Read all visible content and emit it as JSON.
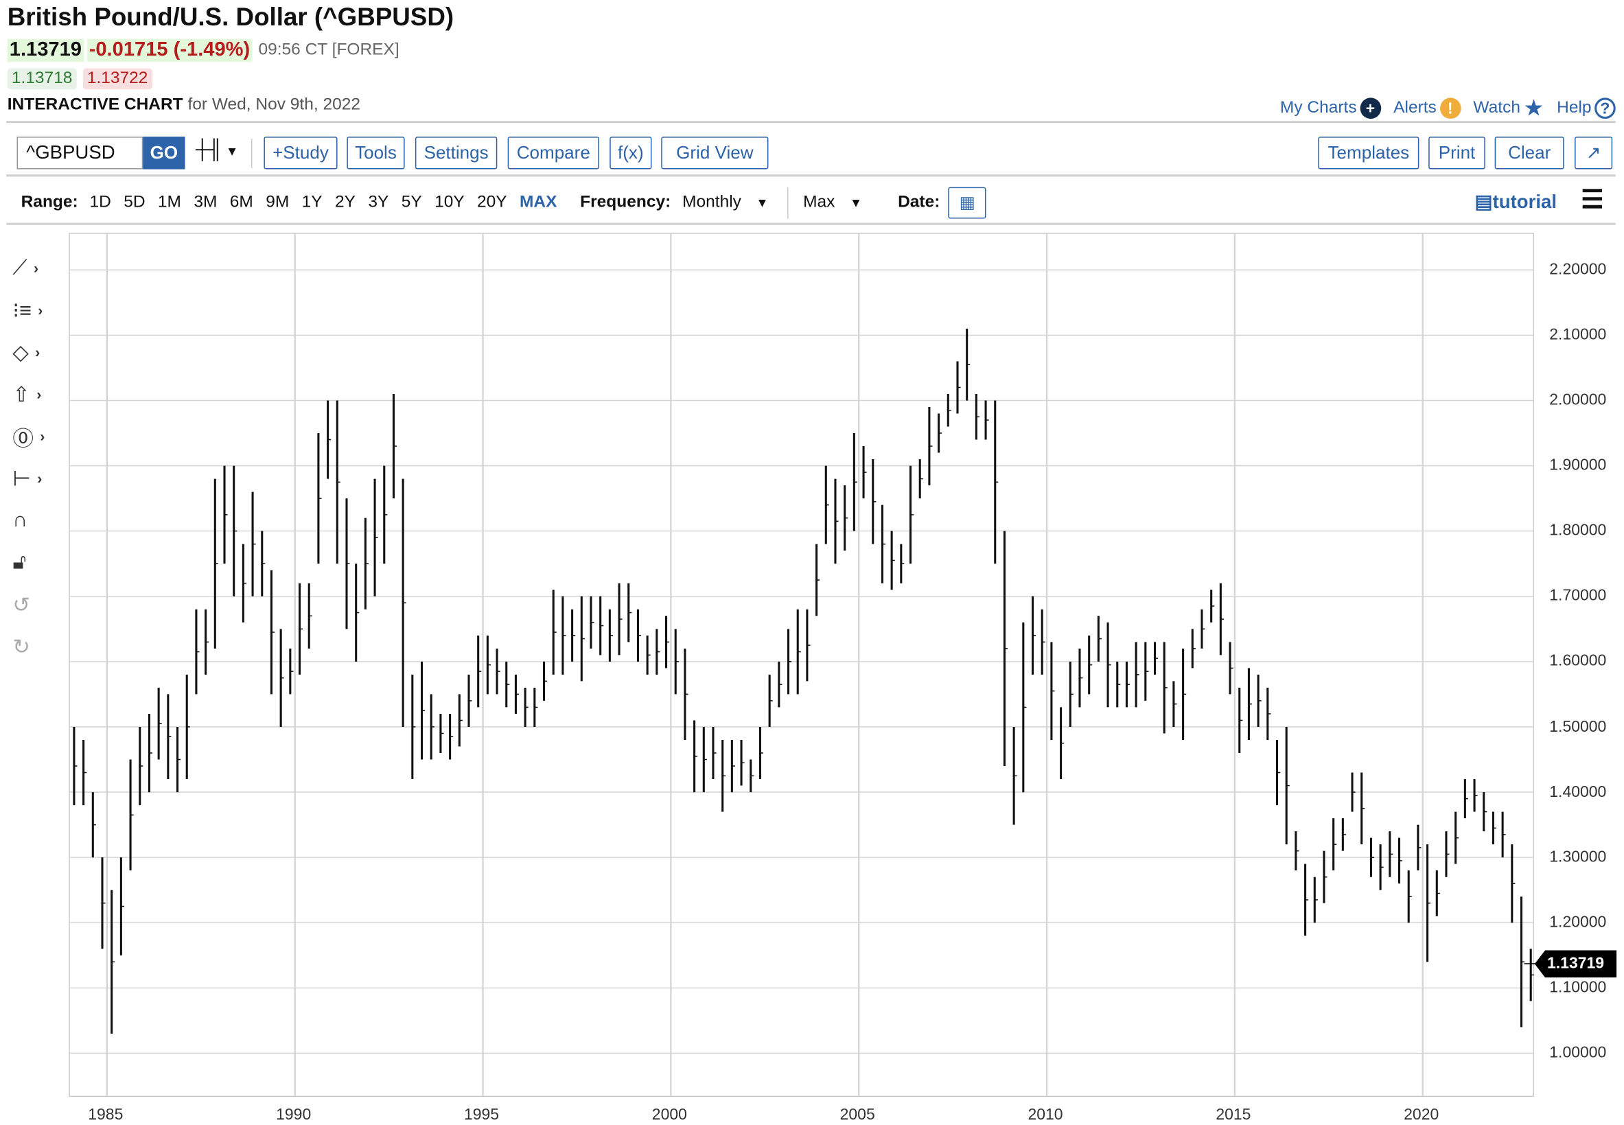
{
  "header": {
    "title": "British Pound/U.S. Dollar (^GBPUSD)",
    "last": "1.13719",
    "change": "-0.01715",
    "change_pct": "(-1.49%)",
    "time": "09:56 CT [FOREX]",
    "bid": "1.13718",
    "ask": "1.13722",
    "chart_label": "INTERACTIVE CHART",
    "chart_date": "for Wed, Nov 9th, 2022"
  },
  "toplinks": {
    "my_charts": "My Charts",
    "alerts": "Alerts",
    "watch": "Watch",
    "help": "Help",
    "alerts_icon": "!",
    "help_icon": "?",
    "my_charts_icon": "+"
  },
  "toolbar": {
    "symbol": "^GBPUSD",
    "go": "GO",
    "study": "+Study",
    "tools": "Tools",
    "settings": "Settings",
    "compare": "Compare",
    "fx": "f(x)",
    "grid_view": "Grid View",
    "templates": "Templates",
    "print": "Print",
    "clear": "Clear",
    "expand": "↗"
  },
  "range": {
    "label": "Range:",
    "options": [
      "1D",
      "5D",
      "1M",
      "3M",
      "6M",
      "9M",
      "1Y",
      "2Y",
      "3Y",
      "5Y",
      "10Y",
      "20Y",
      "MAX"
    ],
    "active": "MAX",
    "frequency_label": "Frequency:",
    "frequency": "Monthly",
    "period": "Max",
    "date_label": "Date:",
    "tutorial": "tutorial"
  },
  "colors": {
    "accent": "#2d63a8",
    "up": "#2e7d32",
    "down": "#b71c1c",
    "bars": "#111111",
    "grid": "#d4d4d4"
  },
  "chart_data": {
    "type": "ohlc-bar",
    "frequency": "Monthly",
    "grid": true,
    "ylim": [
      0.94,
      2.256
    ],
    "xlim": [
      1984,
      2022.95
    ],
    "yticks": [
      "2.20000",
      "2.10000",
      "2.00000",
      "1.90000",
      "1.80000",
      "1.70000",
      "1.60000",
      "1.50000",
      "1.40000",
      "1.30000",
      "1.20000",
      "1.10000",
      "1.00000"
    ],
    "xticks": [
      "1985",
      "1990",
      "1995",
      "2000",
      "2005",
      "2010",
      "2015",
      "2020"
    ],
    "last_price": "1.13719",
    "quarters": [
      "1984",
      "1985",
      "1986",
      "1987",
      "1988",
      "1989",
      "1990",
      "1991",
      "1992",
      "1993",
      "1994",
      "1995",
      "1996",
      "1997",
      "1998",
      "1999",
      "2000",
      "2001",
      "2002",
      "2003",
      "2004",
      "2005",
      "2006",
      "2007",
      "2008",
      "2009",
      "2010",
      "2011",
      "2012",
      "2013",
      "2014",
      "2015",
      "2016",
      "2017",
      "2018",
      "2019",
      "2020",
      "2021",
      "2022"
    ],
    "high": [
      [
        1.5,
        1.48,
        1.4,
        1.3
      ],
      [
        1.25,
        1.3,
        1.45,
        1.5
      ],
      [
        1.52,
        1.56,
        1.55,
        1.5
      ],
      [
        1.58,
        1.68,
        1.68,
        1.88
      ],
      [
        1.9,
        1.9,
        1.78,
        1.86
      ],
      [
        1.8,
        1.74,
        1.65,
        1.62
      ],
      [
        1.72,
        1.72,
        1.95,
        2.0
      ],
      [
        2.0,
        1.85,
        1.75,
        1.82
      ],
      [
        1.88,
        1.9,
        2.01,
        1.88
      ],
      [
        1.58,
        1.6,
        1.55,
        1.52
      ],
      [
        1.52,
        1.55,
        1.58,
        1.64
      ],
      [
        1.64,
        1.62,
        1.6,
        1.58
      ],
      [
        1.56,
        1.56,
        1.6,
        1.71
      ],
      [
        1.7,
        1.68,
        1.7,
        1.7
      ],
      [
        1.7,
        1.68,
        1.72,
        1.72
      ],
      [
        1.68,
        1.64,
        1.65,
        1.67
      ],
      [
        1.65,
        1.62,
        1.51,
        1.5
      ],
      [
        1.5,
        1.48,
        1.48,
        1.48
      ],
      [
        1.45,
        1.5,
        1.58,
        1.6
      ],
      [
        1.65,
        1.68,
        1.68,
        1.78
      ],
      [
        1.9,
        1.88,
        1.87,
        1.95
      ],
      [
        1.93,
        1.91,
        1.84,
        1.8
      ],
      [
        1.78,
        1.9,
        1.91,
        1.99
      ],
      [
        1.98,
        2.01,
        2.06,
        2.11
      ],
      [
        2.01,
        2.0,
        2.0,
        1.8
      ],
      [
        1.5,
        1.66,
        1.7,
        1.68
      ],
      [
        1.63,
        1.53,
        1.6,
        1.62
      ],
      [
        1.64,
        1.67,
        1.66,
        1.6
      ],
      [
        1.6,
        1.63,
        1.63,
        1.63
      ],
      [
        1.63,
        1.57,
        1.62,
        1.65
      ],
      [
        1.68,
        1.71,
        1.72,
        1.63
      ],
      [
        1.56,
        1.59,
        1.58,
        1.56
      ],
      [
        1.48,
        1.5,
        1.34,
        1.29
      ],
      [
        1.27,
        1.31,
        1.36,
        1.36
      ],
      [
        1.43,
        1.43,
        1.33,
        1.32
      ],
      [
        1.34,
        1.33,
        1.28,
        1.35
      ],
      [
        1.32,
        1.28,
        1.34,
        1.37
      ],
      [
        1.42,
        1.42,
        1.4,
        1.37
      ],
      [
        1.37,
        1.32,
        1.24,
        1.16
      ]
    ],
    "low": [
      [
        1.38,
        1.38,
        1.3,
        1.16
      ],
      [
        1.03,
        1.15,
        1.28,
        1.38
      ],
      [
        1.4,
        1.45,
        1.42,
        1.4
      ],
      [
        1.42,
        1.55,
        1.58,
        1.62
      ],
      [
        1.75,
        1.7,
        1.66,
        1.7
      ],
      [
        1.7,
        1.55,
        1.5,
        1.55
      ],
      [
        1.58,
        1.62,
        1.75,
        1.88
      ],
      [
        1.75,
        1.65,
        1.6,
        1.68
      ],
      [
        1.7,
        1.75,
        1.85,
        1.5
      ],
      [
        1.42,
        1.45,
        1.45,
        1.46
      ],
      [
        1.45,
        1.47,
        1.5,
        1.53
      ],
      [
        1.55,
        1.55,
        1.53,
        1.52
      ],
      [
        1.5,
        1.5,
        1.54,
        1.58
      ],
      [
        1.58,
        1.6,
        1.57,
        1.62
      ],
      [
        1.61,
        1.6,
        1.61,
        1.63
      ],
      [
        1.6,
        1.58,
        1.58,
        1.59
      ],
      [
        1.55,
        1.48,
        1.4,
        1.4
      ],
      [
        1.42,
        1.37,
        1.4,
        1.41
      ],
      [
        1.4,
        1.42,
        1.5,
        1.53
      ],
      [
        1.55,
        1.55,
        1.57,
        1.67
      ],
      [
        1.78,
        1.75,
        1.77,
        1.8
      ],
      [
        1.85,
        1.78,
        1.72,
        1.71
      ],
      [
        1.72,
        1.75,
        1.85,
        1.87
      ],
      [
        1.92,
        1.96,
        1.98,
        2.0
      ],
      [
        1.94,
        1.94,
        1.75,
        1.44
      ],
      [
        1.35,
        1.4,
        1.58,
        1.58
      ],
      [
        1.48,
        1.42,
        1.5,
        1.53
      ],
      [
        1.55,
        1.6,
        1.53,
        1.53
      ],
      [
        1.53,
        1.53,
        1.54,
        1.58
      ],
      [
        1.49,
        1.5,
        1.48,
        1.59
      ],
      [
        1.62,
        1.66,
        1.61,
        1.55
      ],
      [
        1.46,
        1.48,
        1.5,
        1.48
      ],
      [
        1.38,
        1.32,
        1.28,
        1.18
      ],
      [
        1.2,
        1.23,
        1.28,
        1.31
      ],
      [
        1.37,
        1.32,
        1.27,
        1.25
      ],
      [
        1.27,
        1.26,
        1.2,
        1.28
      ],
      [
        1.14,
        1.21,
        1.27,
        1.29
      ],
      [
        1.36,
        1.37,
        1.34,
        1.32
      ],
      [
        1.3,
        1.2,
        1.04,
        1.08
      ]
    ]
  }
}
